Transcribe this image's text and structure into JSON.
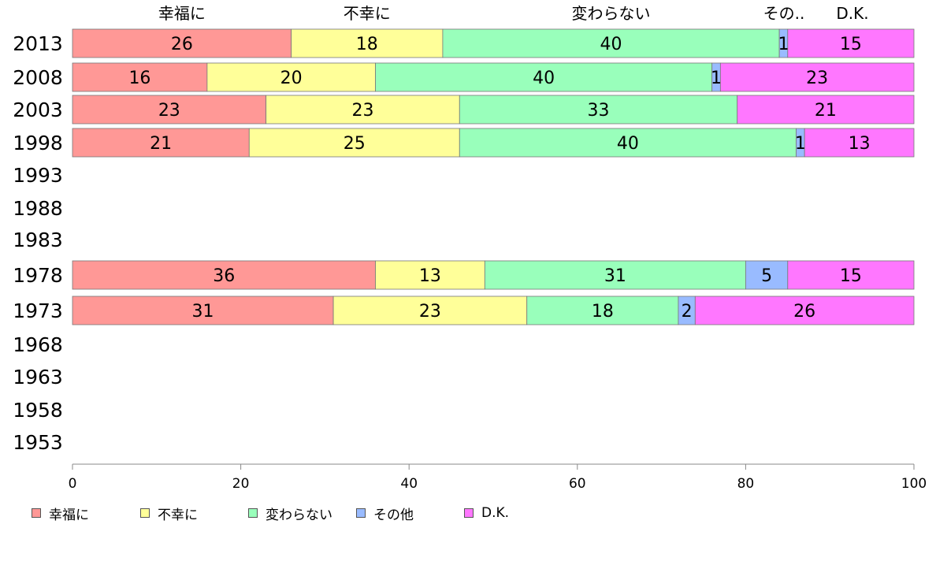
{
  "chart_data": {
    "type": "bar",
    "orientation": "horizontal",
    "stacked": true,
    "categories": [
      "2013",
      "2008",
      "2003",
      "1998",
      "1993",
      "1988",
      "1983",
      "1978",
      "1973",
      "1968",
      "1963",
      "1958",
      "1953"
    ],
    "series": [
      {
        "name": "幸福に",
        "color": "#ff9896",
        "values": [
          26,
          16,
          23,
          21,
          null,
          null,
          null,
          36,
          31,
          null,
          null,
          null,
          null
        ]
      },
      {
        "name": "不幸に",
        "color": "#ffff99",
        "values": [
          18,
          20,
          23,
          25,
          null,
          null,
          null,
          13,
          23,
          null,
          null,
          null,
          null
        ]
      },
      {
        "name": "変わらない",
        "color": "#99ffbb",
        "values": [
          40,
          40,
          33,
          40,
          null,
          null,
          null,
          31,
          18,
          null,
          null,
          null,
          null
        ]
      },
      {
        "name": "その他",
        "color": "#99bbff",
        "values": [
          1,
          1,
          0,
          1,
          null,
          null,
          null,
          5,
          2,
          null,
          null,
          null,
          null
        ]
      },
      {
        "name": "D.K.",
        "color": "#ff77ff",
        "values": [
          15,
          23,
          21,
          13,
          null,
          null,
          null,
          15,
          26,
          null,
          null,
          null,
          null
        ]
      }
    ],
    "top_labels": [
      "幸福に",
      "不幸に",
      "変わらない",
      "その..",
      "D.K."
    ],
    "xlim": [
      0,
      100
    ],
    "xticks": [
      0,
      20,
      40,
      60,
      80,
      100
    ],
    "legend_position": "bottom",
    "grid": false,
    "title": "",
    "xlabel": "",
    "ylabel": ""
  }
}
